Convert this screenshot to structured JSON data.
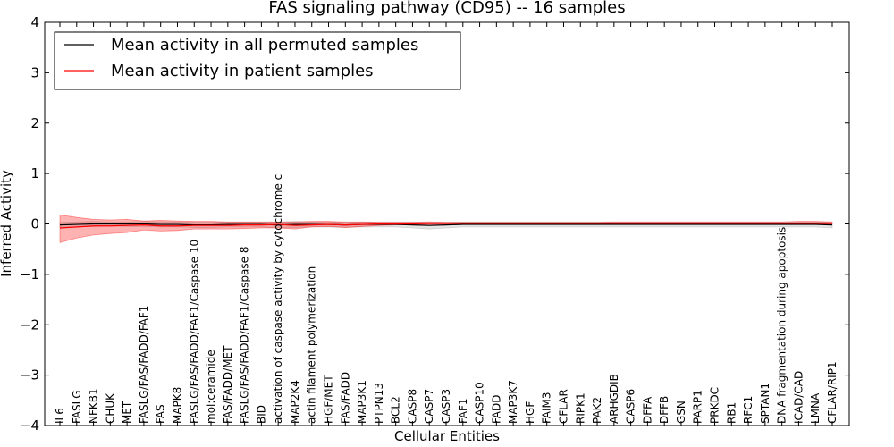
{
  "chart_data": {
    "type": "line",
    "title": "FAS signaling pathway (CD95) -- 16 samples",
    "xlabel": "Cellular Entities",
    "ylabel": "Inferred Activity",
    "ylim": [
      -4,
      4
    ],
    "yticks": [
      "−4",
      "−3",
      "−2",
      "−1",
      "0",
      "1",
      "2",
      "3",
      "4"
    ],
    "categories": [
      "IL6",
      "FASLG",
      "NFKB1",
      "CHUK",
      "MET",
      "FASLG/FAS/FADD/FAF1",
      "FAS",
      "MAPK8",
      "FASLG/FAS/FADD/FAF1/Caspase 10",
      "mol:ceramide",
      "FAS/FADD/MET",
      "FASLG/FAS/FADD/FAF1/Caspase 8",
      "BID",
      "activation of caspase activity by cytochrome c",
      "MAP2K4",
      "actin filament polymerization",
      "HGF/MET",
      "FAS/FADD",
      "MAP3K1",
      "PTPN13",
      "BCL2",
      "CASP8",
      "CASP7",
      "CASP3",
      "FAF1",
      "CASP10",
      "FADD",
      "MAP3K7",
      "HGF",
      "FAIM3",
      "CFLAR",
      "RIPK1",
      "PAK2",
      "ARHGDIB",
      "CASP6",
      "DFFA",
      "DFFB",
      "GSN",
      "PARP1",
      "PRKDC",
      "RB1",
      "RFC1",
      "SPTAN1",
      "DNA fragmentation during apoptosis",
      "ICAD/CAD",
      "LMNA",
      "CFLAR/RIP1"
    ],
    "legend_position": "upper-left",
    "series": [
      {
        "name": "Mean activity in all permuted samples",
        "color": "#000000",
        "band_color": "#999999",
        "values": [
          -0.02,
          -0.01,
          0.0,
          0.0,
          0.0,
          0.0,
          -0.01,
          -0.01,
          -0.02,
          -0.02,
          -0.01,
          -0.01,
          -0.01,
          -0.02,
          -0.01,
          -0.01,
          -0.01,
          -0.02,
          -0.01,
          -0.01,
          -0.01,
          -0.02,
          -0.03,
          -0.02,
          -0.01,
          -0.01,
          -0.01,
          -0.01,
          -0.01,
          -0.01,
          -0.01,
          -0.01,
          -0.01,
          -0.01,
          -0.01,
          -0.01,
          -0.01,
          -0.01,
          -0.01,
          -0.01,
          -0.01,
          -0.01,
          -0.01,
          -0.01,
          -0.01,
          -0.01,
          -0.02
        ],
        "lower": [
          -0.07,
          -0.06,
          -0.05,
          -0.04,
          -0.05,
          -0.05,
          -0.06,
          -0.06,
          -0.07,
          -0.07,
          -0.06,
          -0.06,
          -0.06,
          -0.08,
          -0.07,
          -0.06,
          -0.06,
          -0.07,
          -0.06,
          -0.06,
          -0.06,
          -0.08,
          -0.1,
          -0.08,
          -0.06,
          -0.06,
          -0.06,
          -0.06,
          -0.06,
          -0.06,
          -0.06,
          -0.06,
          -0.06,
          -0.06,
          -0.06,
          -0.06,
          -0.06,
          -0.06,
          -0.06,
          -0.06,
          -0.06,
          -0.06,
          -0.06,
          -0.06,
          -0.06,
          -0.06,
          -0.08
        ],
        "upper": [
          0.03,
          0.04,
          0.05,
          0.04,
          0.04,
          0.05,
          0.04,
          0.04,
          0.03,
          0.03,
          0.04,
          0.04,
          0.04,
          0.04,
          0.05,
          0.04,
          0.04,
          0.03,
          0.04,
          0.04,
          0.04,
          0.04,
          0.04,
          0.04,
          0.04,
          0.04,
          0.04,
          0.04,
          0.04,
          0.04,
          0.04,
          0.04,
          0.04,
          0.04,
          0.04,
          0.04,
          0.04,
          0.04,
          0.04,
          0.04,
          0.04,
          0.04,
          0.04,
          0.04,
          0.04,
          0.04,
          0.03
        ]
      },
      {
        "name": "Mean activity in patient samples",
        "color": "#ff0000",
        "band_color": "#ff0000",
        "values": [
          -0.08,
          -0.06,
          -0.04,
          -0.04,
          -0.03,
          -0.02,
          -0.04,
          -0.04,
          -0.03,
          -0.03,
          -0.03,
          -0.02,
          -0.02,
          -0.01,
          -0.03,
          -0.02,
          -0.01,
          -0.02,
          -0.01,
          0.0,
          0.0,
          0.0,
          0.01,
          0.01,
          0.01,
          0.01,
          0.01,
          0.01,
          0.01,
          0.01,
          0.01,
          0.01,
          0.01,
          0.01,
          0.01,
          0.01,
          0.01,
          0.01,
          0.01,
          0.01,
          0.01,
          0.01,
          0.01,
          0.01,
          0.01,
          0.01,
          0.01
        ],
        "lower": [
          -0.37,
          -0.28,
          -0.22,
          -0.19,
          -0.17,
          -0.12,
          -0.14,
          -0.13,
          -0.1,
          -0.1,
          -0.1,
          -0.09,
          -0.08,
          -0.08,
          -0.1,
          -0.06,
          -0.05,
          -0.07,
          -0.05,
          -0.03,
          -0.02,
          -0.02,
          -0.01,
          -0.01,
          -0.01,
          -0.01,
          -0.01,
          -0.01,
          -0.01,
          -0.01,
          -0.01,
          -0.01,
          -0.01,
          -0.01,
          -0.01,
          -0.01,
          -0.01,
          -0.01,
          -0.01,
          -0.01,
          -0.01,
          -0.01,
          -0.01,
          -0.01,
          -0.01,
          -0.01,
          -0.01
        ],
        "upper": [
          0.18,
          0.13,
          0.09,
          0.08,
          0.09,
          0.06,
          0.07,
          0.06,
          0.05,
          0.05,
          0.04,
          0.04,
          0.04,
          0.04,
          0.04,
          0.05,
          0.05,
          0.04,
          0.04,
          0.03,
          0.03,
          0.03,
          0.04,
          0.03,
          0.03,
          0.03,
          0.03,
          0.03,
          0.03,
          0.03,
          0.03,
          0.03,
          0.03,
          0.04,
          0.04,
          0.04,
          0.04,
          0.04,
          0.04,
          0.04,
          0.04,
          0.04,
          0.04,
          0.04,
          0.05,
          0.05,
          0.04
        ]
      }
    ]
  }
}
